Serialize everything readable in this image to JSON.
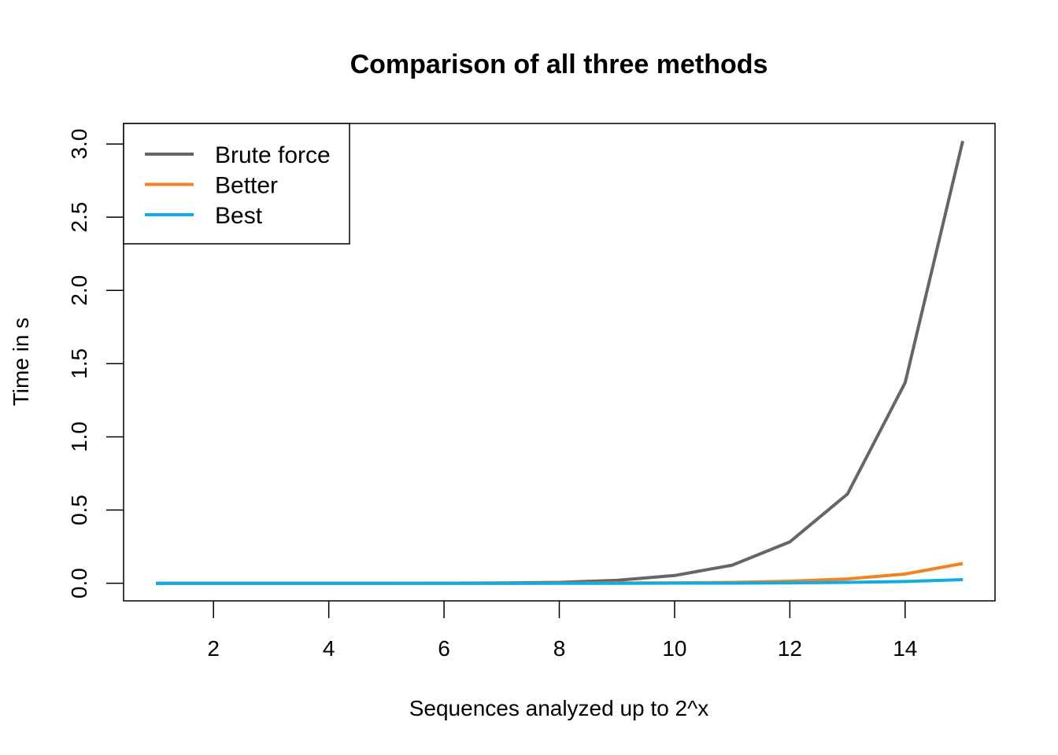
{
  "chart_data": {
    "type": "line",
    "title": "Comparison of all three methods",
    "xlabel": "Sequences analyzed up to 2^x",
    "ylabel": "Time in s",
    "xlim": [
      0.44,
      15.56
    ],
    "ylim": [
      -0.12,
      3.14
    ],
    "xticks": [
      2,
      4,
      6,
      8,
      10,
      12,
      14
    ],
    "yticks": [
      0.0,
      0.5,
      1.0,
      1.5,
      2.0,
      2.5,
      3.0
    ],
    "xtick_labels": [
      "2",
      "4",
      "6",
      "8",
      "10",
      "12",
      "14"
    ],
    "ytick_labels": [
      "0.0",
      "0.5",
      "1.0",
      "1.5",
      "2.0",
      "2.5",
      "3.0"
    ],
    "x": [
      1,
      2,
      3,
      4,
      5,
      6,
      7,
      8,
      9,
      10,
      11,
      12,
      13,
      14,
      15
    ],
    "series": [
      {
        "name": "Brute force",
        "color": "#666666",
        "values": [
          0.0,
          0.0,
          0.0,
          0.0,
          0.0,
          0.001,
          0.002,
          0.006,
          0.02,
          0.053,
          0.124,
          0.283,
          0.61,
          1.37,
          3.02
        ]
      },
      {
        "name": "Better",
        "color": "#F58220",
        "values": [
          0.0,
          0.0,
          0.0,
          0.0,
          0.0,
          0.0,
          0.0,
          0.001,
          0.002,
          0.003,
          0.006,
          0.014,
          0.03,
          0.063,
          0.135
        ]
      },
      {
        "name": "Best",
        "color": "#11ACE2",
        "values": [
          0.0,
          0.0,
          0.0,
          0.0,
          0.0,
          0.0,
          0.0,
          0.0,
          0.0,
          0.001,
          0.001,
          0.003,
          0.006,
          0.012,
          0.025
        ]
      }
    ],
    "legend_position": "top-left",
    "grid": false
  }
}
